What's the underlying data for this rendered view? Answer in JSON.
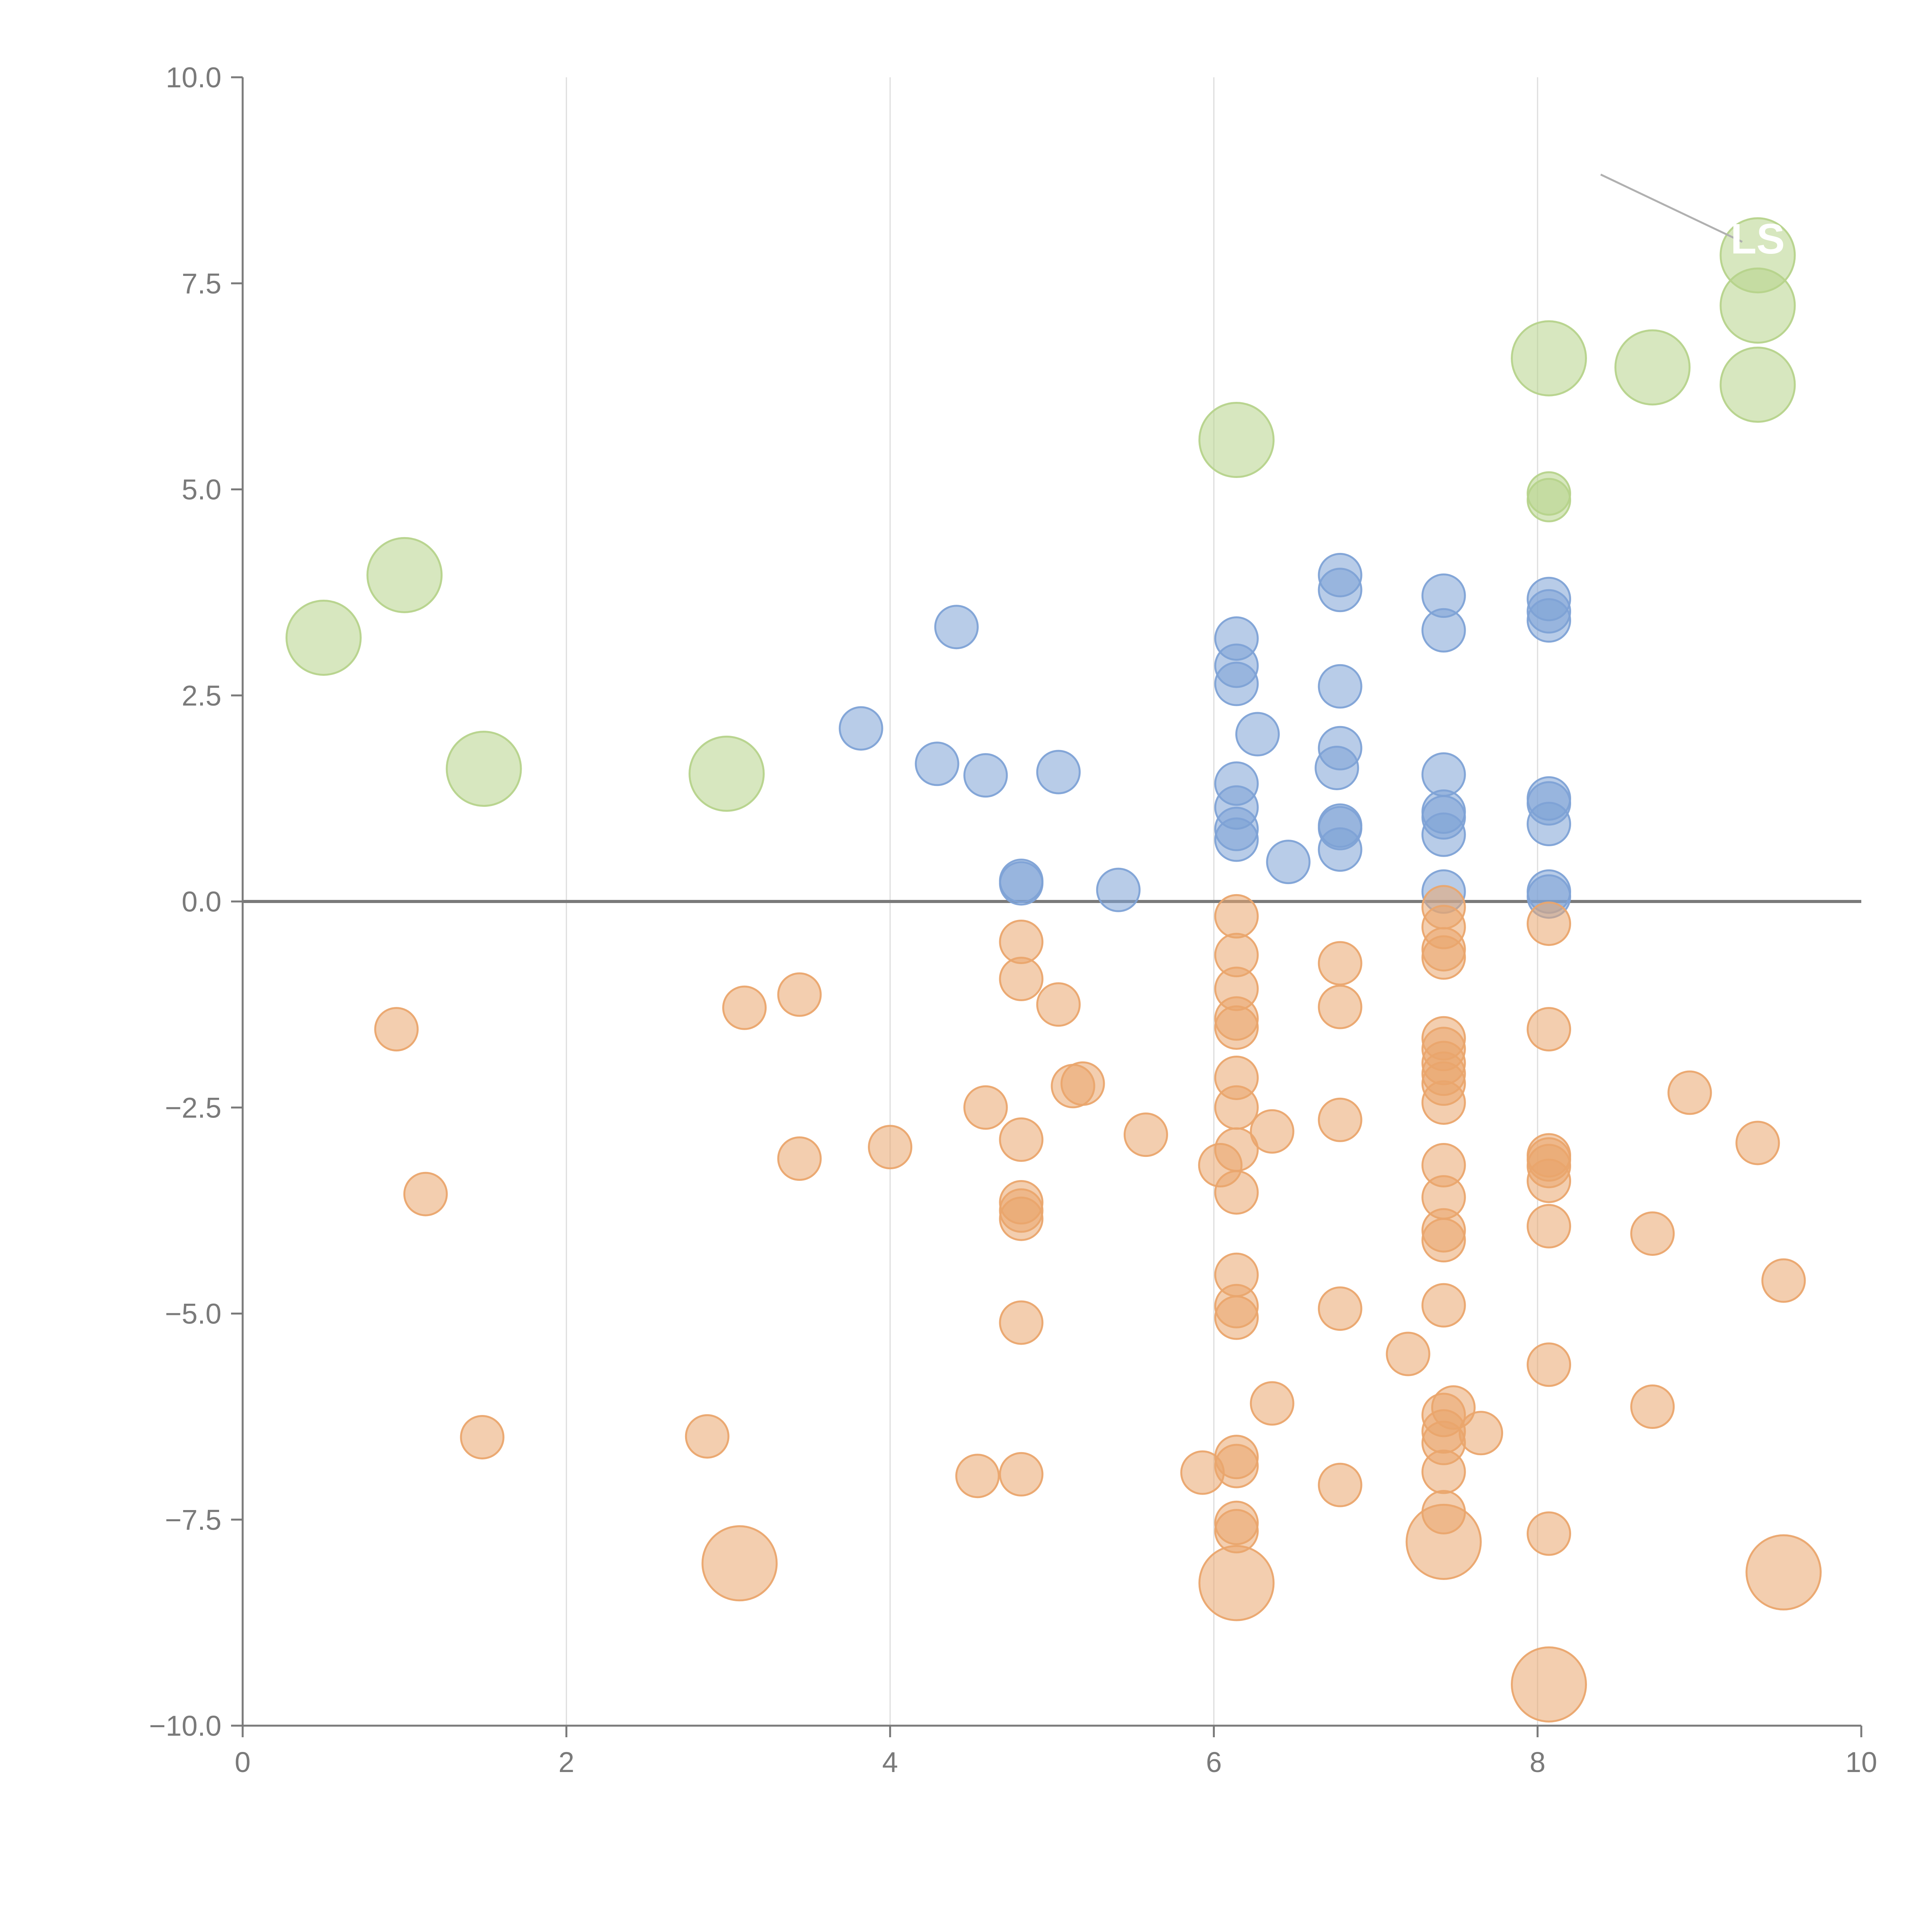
{
  "chart_data": {
    "type": "scatter",
    "title": "",
    "xlabel": "",
    "ylabel": "",
    "xlim": [
      0,
      10
    ],
    "ylim": [
      -10,
      10
    ],
    "xticks": [
      0,
      2,
      4,
      6,
      8,
      10
    ],
    "xtick_labels": [
      "0",
      "2",
      "4",
      "6",
      "8",
      "10"
    ],
    "yticks": [
      10,
      7.5,
      5,
      2.5,
      0,
      -2.5,
      -5,
      -7.5,
      -10
    ],
    "ytick_labels": [
      "10.0",
      "7.5",
      "5.0",
      "2.5",
      "0.0",
      "−2.5",
      "−5.0",
      "−7.5",
      "−10.0"
    ],
    "grid": "vertical",
    "reference_line_y": 0,
    "colors": {
      "blue": "#7ea2d6",
      "orange": "#eaa56d",
      "green": "#b6d38b",
      "grid": "#dddddd",
      "axis": "#7a7a7a",
      "zero_line": "#7a7a7a"
    },
    "series": [
      {
        "name": "blue",
        "color": "#7ea2d6",
        "size": "small",
        "points": [
          [
            3.82,
            2.1
          ],
          [
            4.29,
            1.67
          ],
          [
            4.41,
            3.33
          ],
          [
            4.59,
            1.53
          ],
          [
            4.81,
            0.25
          ],
          [
            4.81,
            0.22
          ],
          [
            5.04,
            1.57
          ],
          [
            5.41,
            0.14
          ],
          [
            6.14,
            3.19
          ],
          [
            6.14,
            2.86
          ],
          [
            6.14,
            2.64
          ],
          [
            6.14,
            1.43
          ],
          [
            6.14,
            1.14
          ],
          [
            6.14,
            0.88
          ],
          [
            6.14,
            0.75
          ],
          [
            6.27,
            2.03
          ],
          [
            6.46,
            0.48
          ],
          [
            6.78,
            3.96
          ],
          [
            6.78,
            3.78
          ],
          [
            6.78,
            2.61
          ],
          [
            6.78,
            1.86
          ],
          [
            6.76,
            1.62
          ],
          [
            6.78,
            0.92
          ],
          [
            6.78,
            0.89
          ],
          [
            6.78,
            0.63
          ],
          [
            7.42,
            3.71
          ],
          [
            7.42,
            3.29
          ],
          [
            7.42,
            1.54
          ],
          [
            7.42,
            1.09
          ],
          [
            7.42,
            1.02
          ],
          [
            7.42,
            0.81
          ],
          [
            7.42,
            0.12
          ],
          [
            8.07,
            3.67
          ],
          [
            8.07,
            3.52
          ],
          [
            8.07,
            3.41
          ],
          [
            8.07,
            1.25
          ],
          [
            8.07,
            1.19
          ],
          [
            8.07,
            0.94
          ],
          [
            8.07,
            0.12
          ],
          [
            8.07,
            0.06
          ]
        ]
      },
      {
        "name": "orange",
        "color": "#eaa56d",
        "size": "small",
        "points": [
          [
            0.95,
            -1.55
          ],
          [
            1.13,
            -3.55
          ],
          [
            1.48,
            -6.5
          ],
          [
            2.87,
            -6.49
          ],
          [
            3.1,
            -1.29
          ],
          [
            3.44,
            -1.13
          ],
          [
            3.44,
            -3.12
          ],
          [
            4.0,
            -2.98
          ],
          [
            4.54,
            -6.97
          ],
          [
            4.59,
            -2.5
          ],
          [
            4.81,
            -0.49
          ],
          [
            4.81,
            -0.94
          ],
          [
            4.81,
            -2.89
          ],
          [
            4.81,
            -3.65
          ],
          [
            4.81,
            -3.75
          ],
          [
            4.81,
            -3.85
          ],
          [
            4.81,
            -5.11
          ],
          [
            4.81,
            -6.95
          ],
          [
            5.04,
            -1.25
          ],
          [
            5.13,
            -2.24
          ],
          [
            5.19,
            -2.21
          ],
          [
            5.58,
            -2.83
          ],
          [
            5.93,
            -6.93
          ],
          [
            6.04,
            -3.2
          ],
          [
            6.14,
            -0.18
          ],
          [
            6.14,
            -0.65
          ],
          [
            6.14,
            -1.06
          ],
          [
            6.14,
            -1.42
          ],
          [
            6.14,
            -1.53
          ],
          [
            6.14,
            -2.14
          ],
          [
            6.14,
            -2.5
          ],
          [
            6.14,
            -3.01
          ],
          [
            6.14,
            -3.53
          ],
          [
            6.14,
            -4.53
          ],
          [
            6.14,
            -4.91
          ],
          [
            6.14,
            -5.05
          ],
          [
            6.14,
            -6.74
          ],
          [
            6.14,
            -6.85
          ],
          [
            6.14,
            -7.54
          ],
          [
            6.14,
            -7.64
          ],
          [
            6.36,
            -2.79
          ],
          [
            6.36,
            -6.09
          ],
          [
            6.78,
            -0.75
          ],
          [
            6.78,
            -1.28
          ],
          [
            6.78,
            -2.65
          ],
          [
            6.78,
            -4.94
          ],
          [
            6.78,
            -7.08
          ],
          [
            7.2,
            -5.49
          ],
          [
            7.42,
            -0.07
          ],
          [
            7.42,
            -0.31
          ],
          [
            7.42,
            -0.58
          ],
          [
            7.42,
            -0.68
          ],
          [
            7.42,
            -1.66
          ],
          [
            7.42,
            -1.79
          ],
          [
            7.42,
            -1.96
          ],
          [
            7.42,
            -2.09
          ],
          [
            7.42,
            -2.21
          ],
          [
            7.42,
            -2.44
          ],
          [
            7.42,
            -3.2
          ],
          [
            7.42,
            -3.59
          ],
          [
            7.42,
            -3.99
          ],
          [
            7.42,
            -4.11
          ],
          [
            7.42,
            -4.9
          ],
          [
            7.48,
            -6.14
          ],
          [
            7.42,
            -6.23
          ],
          [
            7.42,
            -6.43
          ],
          [
            7.42,
            -6.57
          ],
          [
            7.65,
            -6.45
          ],
          [
            7.42,
            -6.92
          ],
          [
            7.42,
            -7.41
          ],
          [
            8.07,
            -0.27
          ],
          [
            8.07,
            -1.55
          ],
          [
            8.07,
            -3.08
          ],
          [
            8.07,
            -3.13
          ],
          [
            8.07,
            -3.21
          ],
          [
            8.07,
            -3.39
          ],
          [
            8.07,
            -3.94
          ],
          [
            8.07,
            -5.62
          ],
          [
            8.07,
            -7.67
          ],
          [
            8.71,
            -4.03
          ],
          [
            8.71,
            -6.13
          ],
          [
            8.94,
            -2.32
          ],
          [
            9.36,
            -2.93
          ],
          [
            9.52,
            -4.6
          ]
        ]
      },
      {
        "name": "green",
        "color": "#b6d38b",
        "size": "large",
        "points": [
          [
            0.5,
            3.2
          ],
          [
            1.0,
            3.96
          ],
          [
            1.49,
            1.61
          ],
          [
            2.99,
            1.55
          ],
          [
            6.14,
            5.6
          ],
          [
            8.07,
            6.59
          ],
          [
            8.71,
            6.48
          ],
          [
            9.36,
            7.84
          ],
          [
            9.36,
            7.23
          ],
          [
            9.36,
            6.27
          ]
        ]
      },
      {
        "name": "green-small",
        "color": "#b6d38b",
        "size": "small",
        "points": [
          [
            8.07,
            4.95
          ],
          [
            8.07,
            4.87
          ]
        ]
      },
      {
        "name": "orange-large",
        "color": "#eaa56d",
        "size": "large",
        "points": [
          [
            3.07,
            -8.03
          ],
          [
            6.14,
            -8.27
          ],
          [
            7.42,
            -7.77
          ],
          [
            8.07,
            -9.5
          ],
          [
            9.52,
            -8.14
          ]
        ]
      }
    ],
    "annotations": [
      {
        "text": "LS",
        "x": 9.36,
        "y": 8.05,
        "callout_from": [
          8.39,
          8.82
        ]
      }
    ]
  }
}
